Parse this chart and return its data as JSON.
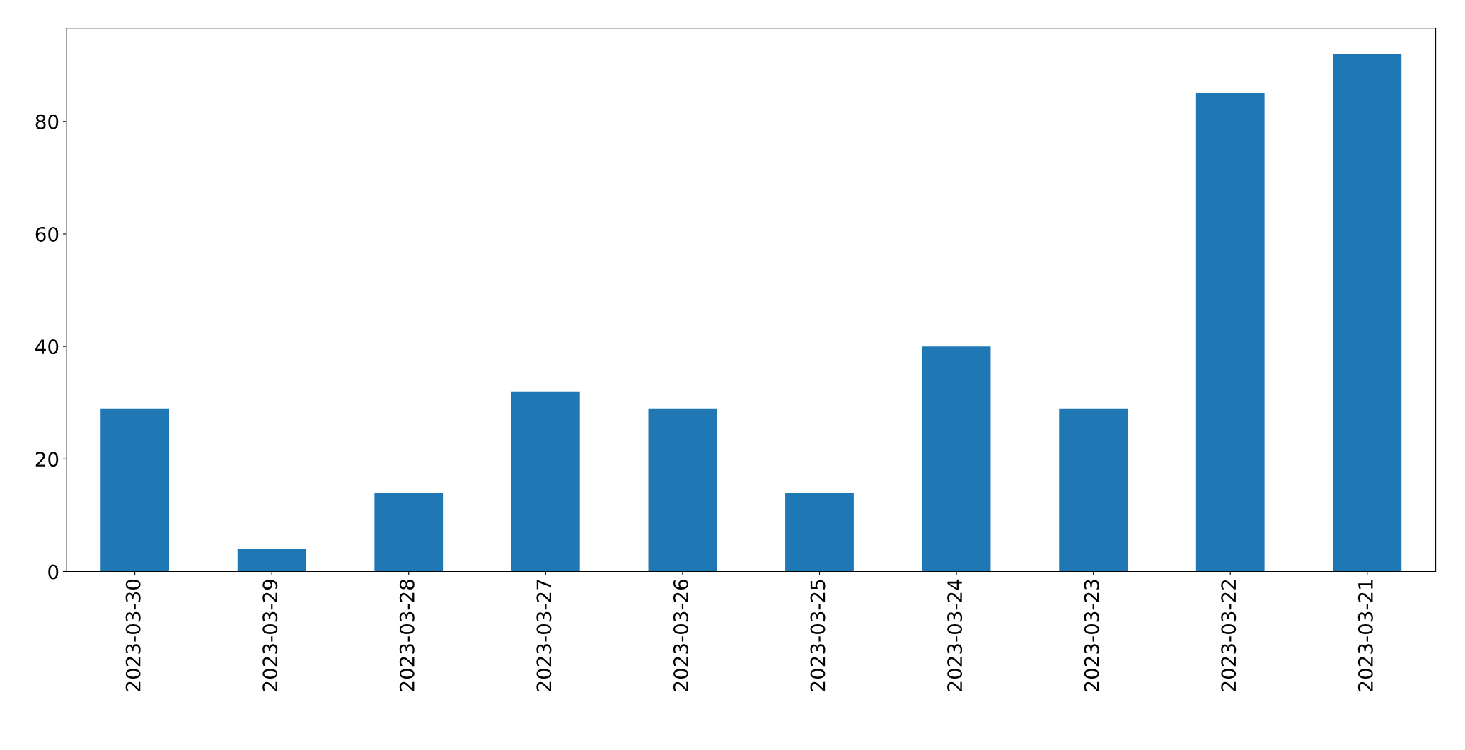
{
  "chart_data": {
    "type": "bar",
    "categories": [
      "2023-03-30",
      "2023-03-29",
      "2023-03-28",
      "2023-03-27",
      "2023-03-26",
      "2023-03-25",
      "2023-03-24",
      "2023-03-23",
      "2023-03-22",
      "2023-03-21"
    ],
    "values": [
      29,
      4,
      14,
      32,
      29,
      14,
      40,
      29,
      85,
      92
    ],
    "color": "#1f77b4",
    "ylim": [
      0,
      96.6
    ],
    "yticks": [
      0,
      20,
      40,
      60,
      80
    ],
    "grid": false,
    "legend": false
  }
}
